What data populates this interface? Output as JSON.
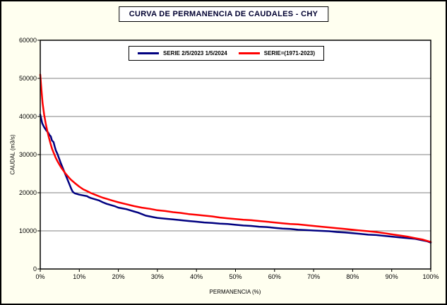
{
  "colors": {
    "frame_background": "#FFFFF0",
    "plot_background": "#FFFFFF",
    "border": "#000000",
    "gridline": "#808080",
    "series1": "#000080",
    "series2": "#FF0000"
  },
  "chart_data": {
    "type": "line",
    "title": "CURVA DE PERMANENCIA DE CAUDALES - CHY",
    "xlabel": "PERMANENCIA (%)",
    "ylabel": "CAUDAL (m3/s)",
    "xlim": [
      0,
      100
    ],
    "ylim": [
      0,
      60000
    ],
    "x_ticks": [
      "0%",
      "10%",
      "20%",
      "30%",
      "40%",
      "50%",
      "60%",
      "70%",
      "80%",
      "90%",
      "100%"
    ],
    "x_tick_values": [
      0,
      10,
      20,
      30,
      40,
      50,
      60,
      70,
      80,
      90,
      100
    ],
    "y_ticks": [
      0,
      10000,
      20000,
      30000,
      40000,
      50000,
      60000
    ],
    "grid": "horizontal",
    "legend_position": "top-center-inside",
    "series": [
      {
        "name": "SERIE 2/5/2023 1/5/2024",
        "color": "#000080",
        "points": [
          [
            0,
            40500
          ],
          [
            0.2,
            39600
          ],
          [
            0.5,
            38200
          ],
          [
            1,
            37200
          ],
          [
            1.5,
            36400
          ],
          [
            2,
            35800
          ],
          [
            2.4,
            35100
          ],
          [
            2.7,
            34800
          ],
          [
            3,
            33700
          ],
          [
            3.4,
            33300
          ],
          [
            3.7,
            32100
          ],
          [
            4,
            31100
          ],
          [
            4.4,
            30200
          ],
          [
            4.8,
            29100
          ],
          [
            5.2,
            27900
          ],
          [
            5.6,
            26900
          ],
          [
            6,
            25900
          ],
          [
            6.4,
            24900
          ],
          [
            6.8,
            23900
          ],
          [
            7.2,
            22900
          ],
          [
            7.6,
            21900
          ],
          [
            8,
            20900
          ],
          [
            8.3,
            20300
          ],
          [
            8.6,
            20000
          ],
          [
            9,
            19800
          ],
          [
            10,
            19500
          ],
          [
            11,
            19300
          ],
          [
            12,
            19100
          ],
          [
            12.5,
            18800
          ],
          [
            13,
            18600
          ],
          [
            14,
            18300
          ],
          [
            15,
            18000
          ],
          [
            16,
            17500
          ],
          [
            17,
            17100
          ],
          [
            18,
            16800
          ],
          [
            19,
            16500
          ],
          [
            20,
            16100
          ],
          [
            21,
            15900
          ],
          [
            22,
            15700
          ],
          [
            23,
            15400
          ],
          [
            24,
            15100
          ],
          [
            25,
            14800
          ],
          [
            26,
            14400
          ],
          [
            27,
            14000
          ],
          [
            28,
            13800
          ],
          [
            29,
            13600
          ],
          [
            30,
            13400
          ],
          [
            32,
            13200
          ],
          [
            34,
            13000
          ],
          [
            36,
            12800
          ],
          [
            38,
            12600
          ],
          [
            40,
            12400
          ],
          [
            42,
            12200
          ],
          [
            44,
            12100
          ],
          [
            46,
            11900
          ],
          [
            48,
            11800
          ],
          [
            50,
            11600
          ],
          [
            52,
            11400
          ],
          [
            54,
            11300
          ],
          [
            56,
            11100
          ],
          [
            58,
            11000
          ],
          [
            60,
            10800
          ],
          [
            62,
            10600
          ],
          [
            64,
            10500
          ],
          [
            66,
            10300
          ],
          [
            68,
            10200
          ],
          [
            70,
            10100
          ],
          [
            72,
            10000
          ],
          [
            74,
            9900
          ],
          [
            76,
            9700
          ],
          [
            78,
            9600
          ],
          [
            80,
            9400
          ],
          [
            82,
            9200
          ],
          [
            84,
            9000
          ],
          [
            86,
            8900
          ],
          [
            88,
            8700
          ],
          [
            90,
            8500
          ],
          [
            92,
            8300
          ],
          [
            94,
            8100
          ],
          [
            96,
            7900
          ],
          [
            98,
            7500
          ],
          [
            99,
            7300
          ],
          [
            100,
            6900
          ]
        ]
      },
      {
        "name": "SERIE=(1971-2023)",
        "color": "#FF0000",
        "points": [
          [
            0,
            51000
          ],
          [
            0.3,
            47000
          ],
          [
            0.6,
            43500
          ],
          [
            1,
            40500
          ],
          [
            1.4,
            38200
          ],
          [
            1.8,
            36200
          ],
          [
            2.2,
            34500
          ],
          [
            2.6,
            33000
          ],
          [
            3,
            31600
          ],
          [
            3.5,
            30300
          ],
          [
            4,
            29100
          ],
          [
            4.5,
            28100
          ],
          [
            5,
            27200
          ],
          [
            5.5,
            26400
          ],
          [
            6,
            25700
          ],
          [
            6.5,
            25000
          ],
          [
            7,
            24400
          ],
          [
            7.5,
            23800
          ],
          [
            8,
            23300
          ],
          [
            9,
            22400
          ],
          [
            10,
            21600
          ],
          [
            11,
            20900
          ],
          [
            12,
            20400
          ],
          [
            13,
            19900
          ],
          [
            14,
            19500
          ],
          [
            15,
            19100
          ],
          [
            16,
            18700
          ],
          [
            17,
            18400
          ],
          [
            18,
            18100
          ],
          [
            19,
            17800
          ],
          [
            20,
            17500
          ],
          [
            22,
            17000
          ],
          [
            24,
            16500
          ],
          [
            26,
            16100
          ],
          [
            28,
            15800
          ],
          [
            30,
            15400
          ],
          [
            32,
            15200
          ],
          [
            34,
            14900
          ],
          [
            36,
            14700
          ],
          [
            38,
            14400
          ],
          [
            40,
            14200
          ],
          [
            42,
            14000
          ],
          [
            44,
            13800
          ],
          [
            46,
            13500
          ],
          [
            48,
            13300
          ],
          [
            50,
            13100
          ],
          [
            52,
            12900
          ],
          [
            54,
            12800
          ],
          [
            56,
            12600
          ],
          [
            58,
            12400
          ],
          [
            60,
            12200
          ],
          [
            62,
            12000
          ],
          [
            64,
            11800
          ],
          [
            66,
            11700
          ],
          [
            68,
            11500
          ],
          [
            70,
            11300
          ],
          [
            72,
            11100
          ],
          [
            74,
            10900
          ],
          [
            76,
            10700
          ],
          [
            78,
            10500
          ],
          [
            80,
            10300
          ],
          [
            82,
            10100
          ],
          [
            84,
            9900
          ],
          [
            86,
            9700
          ],
          [
            88,
            9400
          ],
          [
            90,
            9100
          ],
          [
            92,
            8800
          ],
          [
            94,
            8500
          ],
          [
            96,
            8100
          ],
          [
            98,
            7700
          ],
          [
            100,
            7100
          ]
        ]
      }
    ]
  }
}
